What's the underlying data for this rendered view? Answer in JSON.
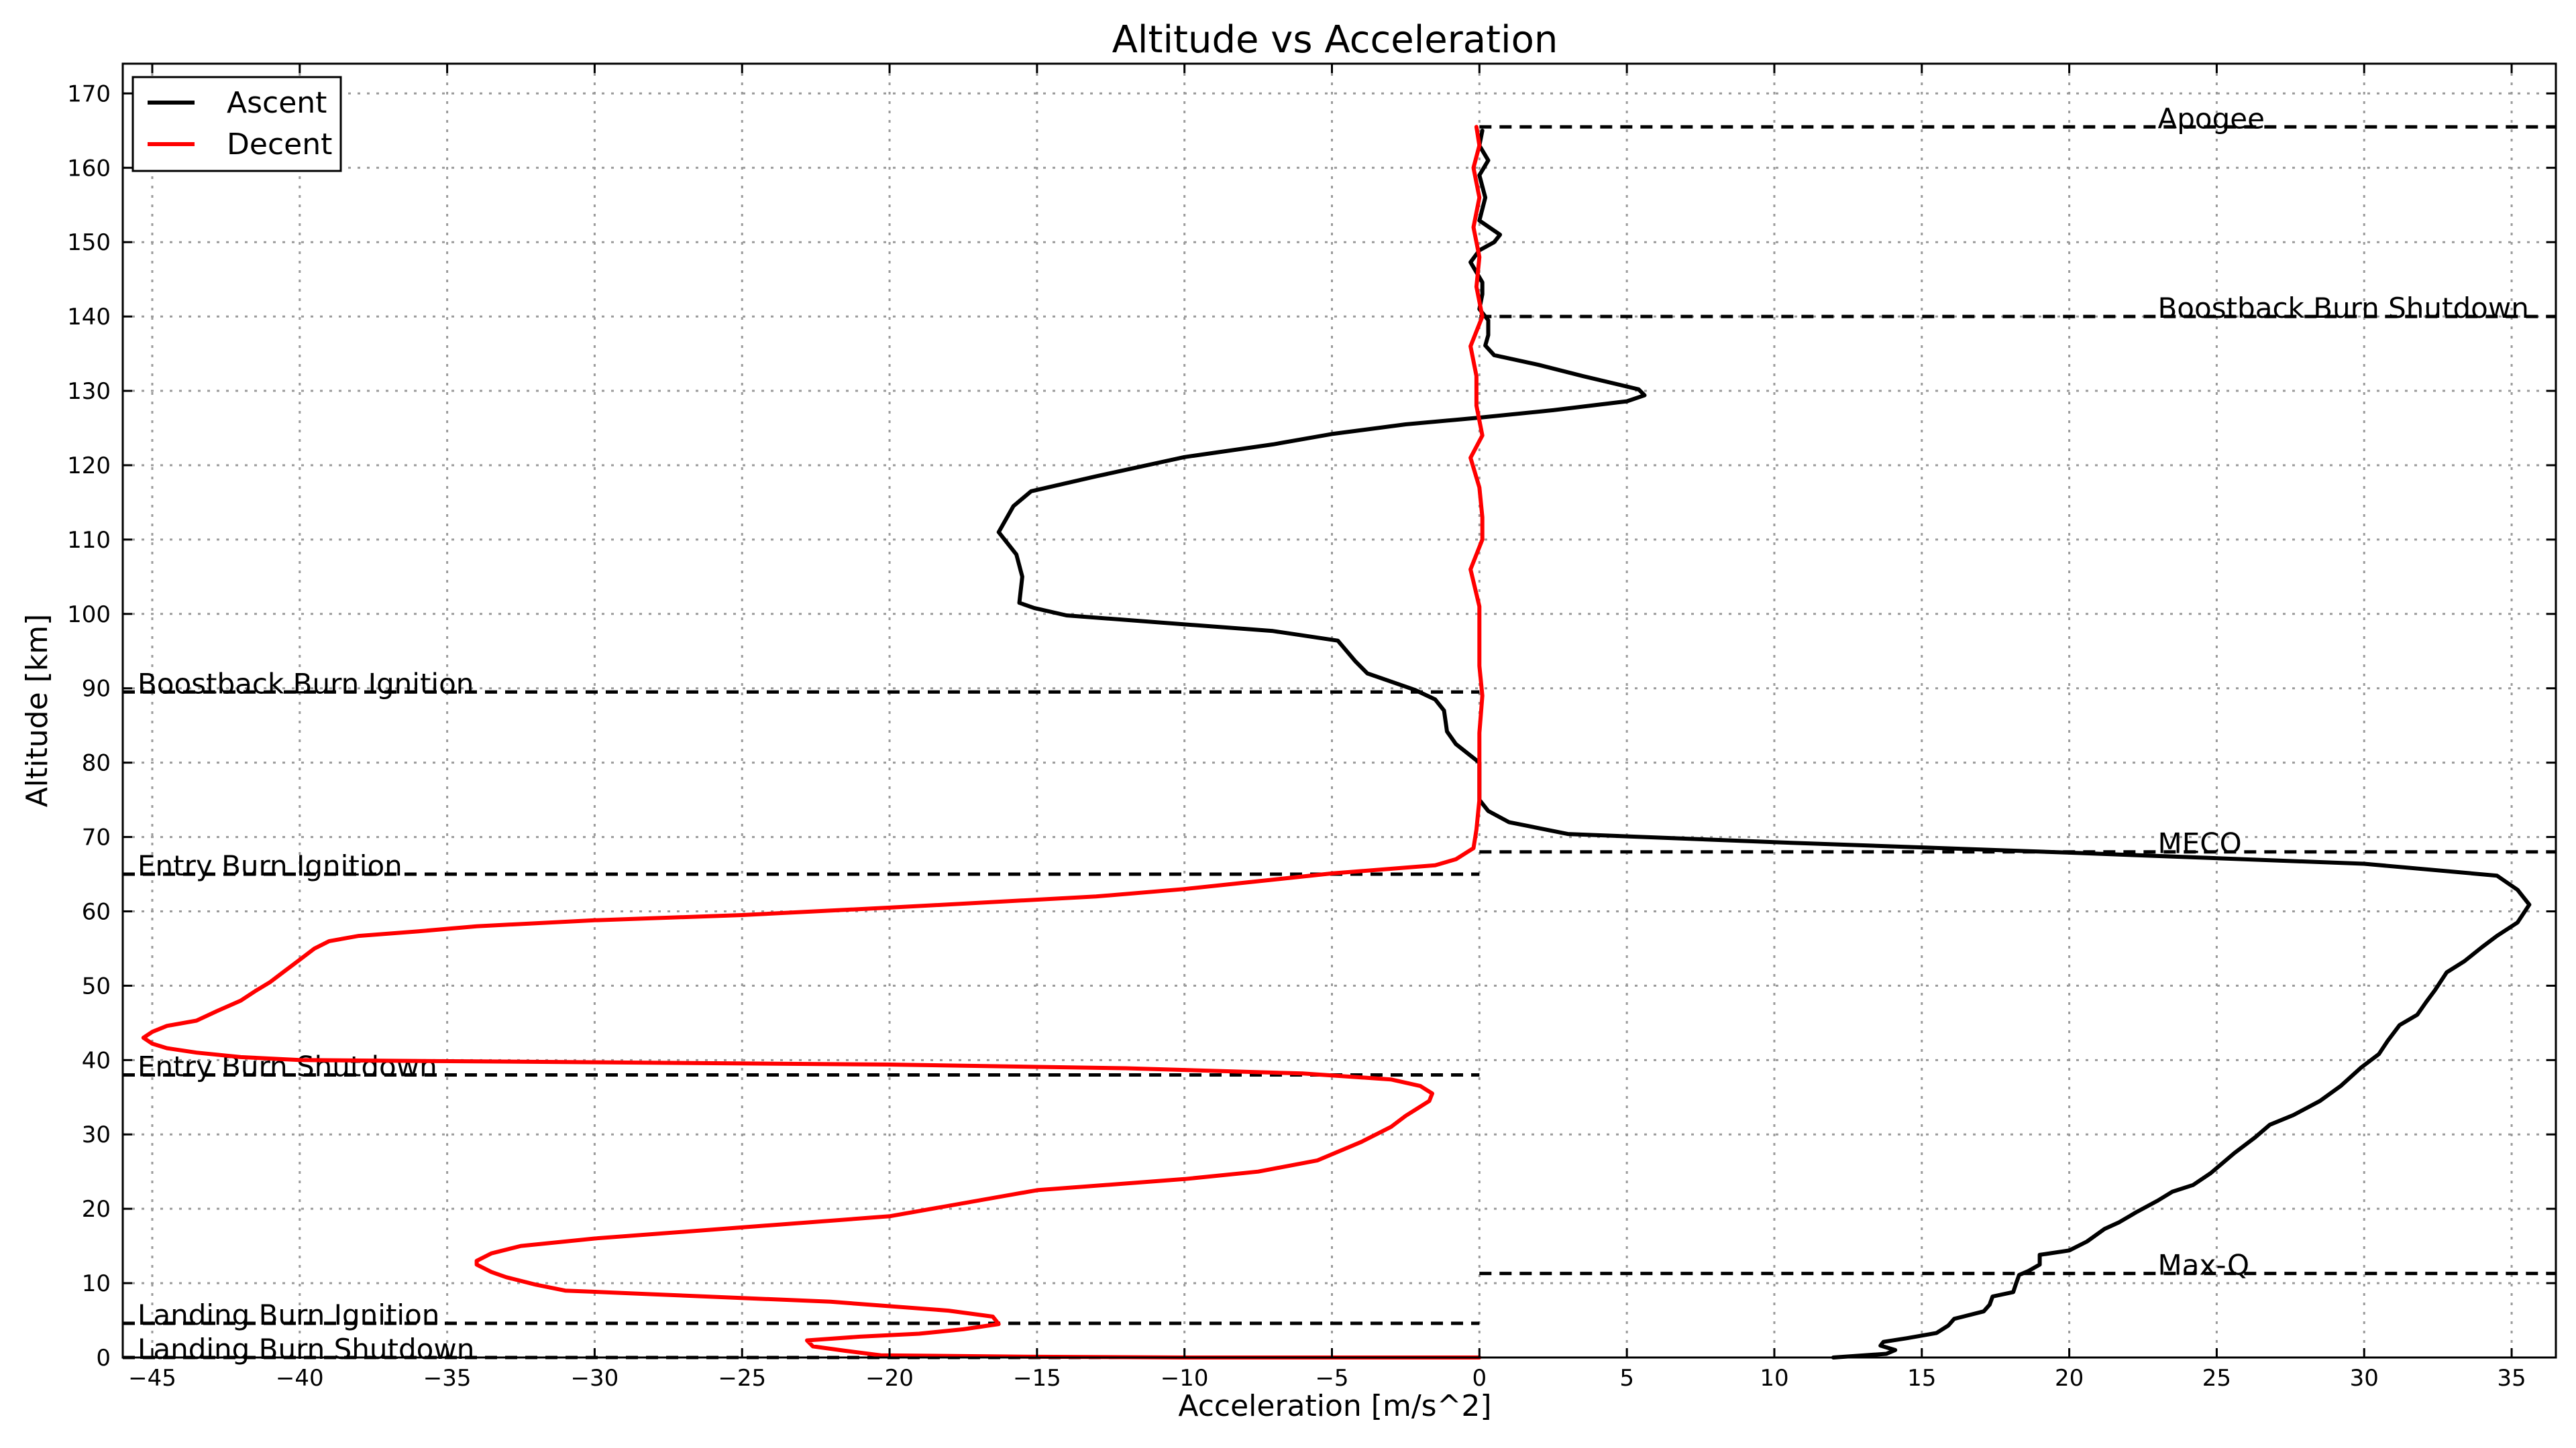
{
  "chart_data": {
    "type": "line",
    "title": "Altitude vs Acceleration",
    "xlabel": "Acceleration [m/s^2]",
    "ylabel": "Altitude [km]",
    "xlim": [
      -46,
      36.5
    ],
    "ylim": [
      0,
      174
    ],
    "xticks": [
      -45,
      -40,
      -35,
      -30,
      -25,
      -20,
      -15,
      -10,
      -5,
      0,
      5,
      10,
      15,
      20,
      25,
      30,
      35
    ],
    "yticks": [
      0,
      10,
      20,
      30,
      40,
      50,
      60,
      70,
      80,
      90,
      100,
      110,
      120,
      130,
      140,
      150,
      160,
      170
    ],
    "grid": true,
    "legend_position": "top-left",
    "series": [
      {
        "name": "Ascent",
        "color": "#000000",
        "points": [
          [
            12,
            0
          ],
          [
            13.8,
            0.5
          ],
          [
            14.1,
            1
          ],
          [
            13.6,
            1.6
          ],
          [
            13.7,
            2.1
          ],
          [
            14.5,
            2.6
          ],
          [
            15.5,
            3.3
          ],
          [
            15.9,
            4.3
          ],
          [
            16.1,
            5.2
          ],
          [
            16.3,
            5.4
          ],
          [
            17.1,
            6.2
          ],
          [
            17.3,
            7.1
          ],
          [
            17.4,
            8.2
          ],
          [
            18.1,
            8.8
          ],
          [
            18.2,
            10
          ],
          [
            18.3,
            11.1
          ],
          [
            18.6,
            11.6
          ],
          [
            19.0,
            12.5
          ],
          [
            19.0,
            13.8
          ],
          [
            20.0,
            14.4
          ],
          [
            20.6,
            15.6
          ],
          [
            21.2,
            17.3
          ],
          [
            21.7,
            18.2
          ],
          [
            22.3,
            19.6
          ],
          [
            23.0,
            21.1
          ],
          [
            23.5,
            22.3
          ],
          [
            24.2,
            23.2
          ],
          [
            24.8,
            24.8
          ],
          [
            25.6,
            27.5
          ],
          [
            26.3,
            29.6
          ],
          [
            26.8,
            31.3
          ],
          [
            27.6,
            32.6
          ],
          [
            28.5,
            34.5
          ],
          [
            29.2,
            36.5
          ],
          [
            29.9,
            39.0
          ],
          [
            30.5,
            40.8
          ],
          [
            30.8,
            42.6
          ],
          [
            31.2,
            44.7
          ],
          [
            31.8,
            46.1
          ],
          [
            32.1,
            47.8
          ],
          [
            32.4,
            49.4
          ],
          [
            32.8,
            51.8
          ],
          [
            33.4,
            53.3
          ],
          [
            34.0,
            55.2
          ],
          [
            34.5,
            56.7
          ],
          [
            35.2,
            58.5
          ],
          [
            35.6,
            60.9
          ],
          [
            35.2,
            62.9
          ],
          [
            34.5,
            64.8
          ],
          [
            30.0,
            66.4
          ],
          [
            20.0,
            67.9
          ],
          [
            10.0,
            69.3
          ],
          [
            3.0,
            70.4
          ],
          [
            1.0,
            72.0
          ],
          [
            0.3,
            73.5
          ],
          [
            0.0,
            75.0
          ],
          [
            0.0,
            80.0
          ],
          [
            -0.8,
            82.5
          ],
          [
            -1.1,
            84.2
          ],
          [
            -1.2,
            87.0
          ],
          [
            -1.5,
            88.5
          ],
          [
            -2.2,
            89.8
          ],
          [
            -3.8,
            92.0
          ],
          [
            -4.2,
            93.6
          ],
          [
            -4.8,
            96.4
          ],
          [
            -7.0,
            97.7
          ],
          [
            -14.0,
            99.8
          ],
          [
            -15.1,
            100.8
          ],
          [
            -15.6,
            101.5
          ],
          [
            -15.5,
            105.0
          ],
          [
            -15.7,
            108.0
          ],
          [
            -16.3,
            111.0
          ],
          [
            -15.8,
            114.5
          ],
          [
            -15.2,
            116.5
          ],
          [
            -13.0,
            118.5
          ],
          [
            -11.5,
            119.8
          ],
          [
            -10.0,
            121.1
          ],
          [
            -7.0,
            122.8
          ],
          [
            -5.0,
            124.2
          ],
          [
            -2.5,
            125.5
          ],
          [
            0.0,
            126.4
          ],
          [
            2.5,
            127.4
          ],
          [
            5.0,
            128.6
          ],
          [
            5.6,
            129.4
          ],
          [
            5.4,
            130.2
          ],
          [
            3.5,
            132.0
          ],
          [
            2.0,
            133.5
          ],
          [
            0.5,
            134.8
          ],
          [
            0.2,
            136.1
          ],
          [
            0.3,
            137.5
          ],
          [
            0.3,
            139.5
          ],
          [
            0.0,
            141.0
          ],
          [
            0.1,
            143.0
          ],
          [
            0.1,
            144.6
          ],
          [
            -0.3,
            147.3
          ],
          [
            0.0,
            148.9
          ],
          [
            0.5,
            150.0
          ],
          [
            0.7,
            151.0
          ],
          [
            0.0,
            152.9
          ],
          [
            0.2,
            156.0
          ],
          [
            0.0,
            159.0
          ],
          [
            0.3,
            161.0
          ],
          [
            0.0,
            163.0
          ],
          [
            0.1,
            165.0
          ]
        ]
      },
      {
        "name": "Decent",
        "color": "#ff0000",
        "points": [
          [
            -0.1,
            165.5
          ],
          [
            0.0,
            163.0
          ],
          [
            -0.2,
            160.0
          ],
          [
            0.0,
            156.0
          ],
          [
            -0.2,
            152.0
          ],
          [
            0.0,
            148.0
          ],
          [
            -0.1,
            144.0
          ],
          [
            0.1,
            140.0
          ],
          [
            -0.3,
            136.0
          ],
          [
            -0.1,
            132.0
          ],
          [
            -0.1,
            128.0
          ],
          [
            0.1,
            124.0
          ],
          [
            -0.3,
            121.0
          ],
          [
            0.0,
            117.0
          ],
          [
            0.1,
            113.0
          ],
          [
            0.1,
            110.0
          ],
          [
            -0.3,
            106.0
          ],
          [
            0.0,
            101.0
          ],
          [
            0.0,
            97.0
          ],
          [
            0.0,
            93.0
          ],
          [
            0.1,
            89.0
          ],
          [
            0.0,
            84.0
          ],
          [
            0.0,
            79.0
          ],
          [
            0.0,
            75.0
          ],
          [
            -0.1,
            71.0
          ],
          [
            -0.2,
            68.5
          ],
          [
            -0.8,
            67.0
          ],
          [
            -1.5,
            66.2
          ],
          [
            -5.0,
            65.1
          ],
          [
            -10.0,
            63.0
          ],
          [
            -13.0,
            62.0
          ],
          [
            -20.0,
            60.5
          ],
          [
            -25.0,
            59.5
          ],
          [
            -30.0,
            58.8
          ],
          [
            -34.0,
            58.0
          ],
          [
            -36.0,
            57.3
          ],
          [
            -38.0,
            56.7
          ],
          [
            -39.0,
            56.0
          ],
          [
            -39.5,
            55.0
          ],
          [
            -40.0,
            53.5
          ],
          [
            -40.5,
            52.0
          ],
          [
            -41.0,
            50.5
          ],
          [
            -41.5,
            49.3
          ],
          [
            -42.0,
            48.0
          ],
          [
            -42.8,
            46.6
          ],
          [
            -43.5,
            45.3
          ],
          [
            -44.5,
            44.6
          ],
          [
            -45.0,
            43.8
          ],
          [
            -45.3,
            43.0
          ],
          [
            -45.0,
            42.2
          ],
          [
            -44.5,
            41.6
          ],
          [
            -43.5,
            41.0
          ],
          [
            -42.0,
            40.4
          ],
          [
            -40.0,
            40.0
          ],
          [
            -30.0,
            39.7
          ],
          [
            -20.0,
            39.4
          ],
          [
            -12.0,
            38.9
          ],
          [
            -6.0,
            38.2
          ],
          [
            -3.0,
            37.4
          ],
          [
            -2.0,
            36.5
          ],
          [
            -1.6,
            35.5
          ],
          [
            -1.7,
            34.5
          ],
          [
            -2.1,
            33.5
          ],
          [
            -2.5,
            32.5
          ],
          [
            -3.0,
            31.0
          ],
          [
            -4.0,
            29.0
          ],
          [
            -5.5,
            26.5
          ],
          [
            -7.5,
            25.0
          ],
          [
            -10.0,
            24.0
          ],
          [
            -15.0,
            22.5
          ],
          [
            -20.0,
            19.0
          ],
          [
            -25.0,
            17.5
          ],
          [
            -30.0,
            16.0
          ],
          [
            -32.5,
            15.0
          ],
          [
            -33.5,
            14.0
          ],
          [
            -34.0,
            13.0
          ],
          [
            -34.0,
            12.5
          ],
          [
            -33.5,
            11.5
          ],
          [
            -33.0,
            10.8
          ],
          [
            -32.0,
            9.8
          ],
          [
            -31.0,
            9.0
          ],
          [
            -28.0,
            8.5
          ],
          [
            -22.0,
            7.5
          ],
          [
            -18.0,
            6.3
          ],
          [
            -16.5,
            5.5
          ],
          [
            -16.3,
            4.5
          ],
          [
            -17.5,
            3.8
          ],
          [
            -19.0,
            3.2
          ],
          [
            -21.0,
            2.8
          ],
          [
            -22.8,
            2.3
          ],
          [
            -22.6,
            1.5
          ],
          [
            -21.5,
            0.9
          ],
          [
            -20.3,
            0.3
          ],
          [
            -15.0,
            0.1
          ],
          [
            -10.0,
            0.0
          ],
          [
            0.0,
            0.0
          ]
        ]
      }
    ],
    "events": [
      {
        "label": "Apogee",
        "altitude": 165.5,
        "side": "right"
      },
      {
        "label": "Boostback Burn Shutdown",
        "altitude": 140.0,
        "side": "right"
      },
      {
        "label": "Boostback Burn Ignition",
        "altitude": 89.5,
        "side": "left"
      },
      {
        "label": "MECO",
        "altitude": 68.0,
        "side": "right"
      },
      {
        "label": "Entry Burn Ignition",
        "altitude": 65.0,
        "side": "left"
      },
      {
        "label": "Entry Burn Shutdown",
        "altitude": 38.0,
        "side": "left"
      },
      {
        "label": "Max-Q",
        "altitude": 11.3,
        "side": "right"
      },
      {
        "label": "Landing Burn Ignition",
        "altitude": 4.6,
        "side": "left"
      },
      {
        "label": "Landing Burn Shutdown",
        "altitude": 0.0,
        "side": "left"
      }
    ]
  }
}
